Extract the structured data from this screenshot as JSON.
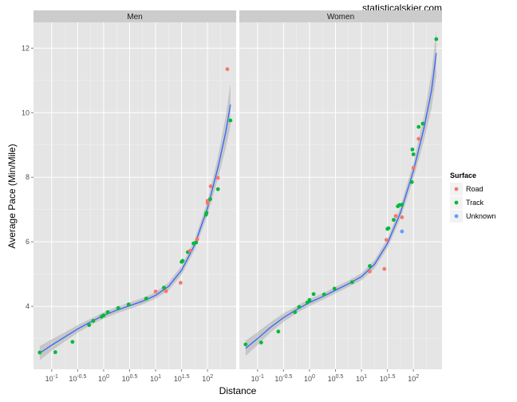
{
  "watermark": "statisticalskier.com",
  "chart_data": {
    "type": "scatter",
    "xlabel": "Distance",
    "ylabel": "Average Pace (Min/Mile)",
    "x_scale": "log10",
    "xlim_log10": [
      -1.35,
      2.55
    ],
    "ylim": [
      2.05,
      12.8
    ],
    "x_ticks_log10": [
      -1,
      -0.5,
      0,
      0.5,
      1,
      1.5,
      2
    ],
    "x_tick_labels": [
      "10^-1",
      "10^-0.5",
      "10^0",
      "10^0.5",
      "10^1",
      "10^1.5",
      "10^2"
    ],
    "y_ticks": [
      4,
      6,
      8,
      10,
      12
    ],
    "grid": true,
    "legend": {
      "title": "Surface",
      "position": "right",
      "entries": [
        {
          "name": "Road",
          "color": "#F8766D"
        },
        {
          "name": "Track",
          "color": "#00BA38"
        },
        {
          "name": "Unknown",
          "color": "#619CFF"
        }
      ]
    },
    "panels": [
      {
        "name": "Men",
        "points": [
          {
            "lx": -1.23,
            "y": 2.57,
            "s": "Track"
          },
          {
            "lx": -0.93,
            "y": 2.58,
            "s": "Track"
          },
          {
            "lx": -0.6,
            "y": 2.9,
            "s": "Track"
          },
          {
            "lx": -0.28,
            "y": 3.42,
            "s": "Track"
          },
          {
            "lx": -0.2,
            "y": 3.55,
            "s": "Track"
          },
          {
            "lx": -0.04,
            "y": 3.68,
            "s": "Track"
          },
          {
            "lx": 0.0,
            "y": 3.72,
            "s": "Track"
          },
          {
            "lx": 0.08,
            "y": 3.82,
            "s": "Track"
          },
          {
            "lx": 0.28,
            "y": 3.95,
            "s": "Track"
          },
          {
            "lx": 0.48,
            "y": 4.06,
            "s": "Track"
          },
          {
            "lx": 0.82,
            "y": 4.24,
            "s": "Track"
          },
          {
            "lx": 1.0,
            "y": 4.46,
            "s": "Road"
          },
          {
            "lx": 1.2,
            "y": 4.47,
            "s": "Road"
          },
          {
            "lx": 1.16,
            "y": 4.58,
            "s": "Track"
          },
          {
            "lx": 1.48,
            "y": 4.73,
            "s": "Road"
          },
          {
            "lx": 1.5,
            "y": 5.38,
            "s": "Track"
          },
          {
            "lx": 1.52,
            "y": 5.41,
            "s": "Track"
          },
          {
            "lx": 1.62,
            "y": 5.68,
            "s": "Track"
          },
          {
            "lx": 1.66,
            "y": 5.72,
            "s": "Road"
          },
          {
            "lx": 1.73,
            "y": 5.95,
            "s": "Track"
          },
          {
            "lx": 1.78,
            "y": 5.98,
            "s": "Track"
          },
          {
            "lx": 1.8,
            "y": 6.08,
            "s": "Road"
          },
          {
            "lx": 1.97,
            "y": 6.84,
            "s": "Track"
          },
          {
            "lx": 1.98,
            "y": 6.9,
            "s": "Track"
          },
          {
            "lx": 2.0,
            "y": 7.2,
            "s": "Road"
          },
          {
            "lx": 2.0,
            "y": 7.27,
            "s": "Road"
          },
          {
            "lx": 2.05,
            "y": 7.32,
            "s": "Track"
          },
          {
            "lx": 2.06,
            "y": 7.72,
            "s": "Road"
          },
          {
            "lx": 2.2,
            "y": 7.63,
            "s": "Track"
          },
          {
            "lx": 2.2,
            "y": 7.98,
            "s": "Road"
          },
          {
            "lx": 2.38,
            "y": 11.35,
            "s": "Road"
          },
          {
            "lx": 2.44,
            "y": 9.76,
            "s": "Track"
          }
        ],
        "fit": [
          {
            "lx": -1.23,
            "y": 2.55
          },
          {
            "lx": -1.0,
            "y": 2.8
          },
          {
            "lx": -0.75,
            "y": 3.05
          },
          {
            "lx": -0.5,
            "y": 3.3
          },
          {
            "lx": -0.25,
            "y": 3.52
          },
          {
            "lx": 0.0,
            "y": 3.72
          },
          {
            "lx": 0.25,
            "y": 3.88
          },
          {
            "lx": 0.5,
            "y": 4.02
          },
          {
            "lx": 0.75,
            "y": 4.16
          },
          {
            "lx": 1.0,
            "y": 4.34
          },
          {
            "lx": 1.25,
            "y": 4.62
          },
          {
            "lx": 1.5,
            "y": 5.12
          },
          {
            "lx": 1.75,
            "y": 5.9
          },
          {
            "lx": 2.0,
            "y": 7.05
          },
          {
            "lx": 2.2,
            "y": 8.3
          },
          {
            "lx": 2.35,
            "y": 9.4
          },
          {
            "lx": 2.44,
            "y": 10.25
          }
        ],
        "band": [
          0.22,
          0.18,
          0.14,
          0.12,
          0.1,
          0.1,
          0.1,
          0.1,
          0.1,
          0.1,
          0.12,
          0.14,
          0.16,
          0.22,
          0.34,
          0.5,
          0.65
        ]
      },
      {
        "name": "Women",
        "points": [
          {
            "lx": -1.23,
            "y": 2.82,
            "s": "Track"
          },
          {
            "lx": -0.93,
            "y": 2.88,
            "s": "Track"
          },
          {
            "lx": -0.6,
            "y": 3.22,
            "s": "Track"
          },
          {
            "lx": -0.28,
            "y": 3.82,
            "s": "Track"
          },
          {
            "lx": -0.2,
            "y": 3.98,
            "s": "Track"
          },
          {
            "lx": -0.04,
            "y": 4.12,
            "s": "Track"
          },
          {
            "lx": 0.0,
            "y": 4.2,
            "s": "Track"
          },
          {
            "lx": 0.08,
            "y": 4.38,
            "s": "Track"
          },
          {
            "lx": 0.28,
            "y": 4.37,
            "s": "Track"
          },
          {
            "lx": 0.48,
            "y": 4.55,
            "s": "Track"
          },
          {
            "lx": 0.82,
            "y": 4.75,
            "s": "Track"
          },
          {
            "lx": 1.16,
            "y": 5.08,
            "s": "Road"
          },
          {
            "lx": 1.16,
            "y": 5.25,
            "s": "Track"
          },
          {
            "lx": 1.44,
            "y": 5.16,
            "s": "Road"
          },
          {
            "lx": 1.48,
            "y": 6.06,
            "s": "Road"
          },
          {
            "lx": 1.5,
            "y": 6.4,
            "s": "Track"
          },
          {
            "lx": 1.52,
            "y": 6.42,
            "s": "Track"
          },
          {
            "lx": 1.62,
            "y": 6.68,
            "s": "Track"
          },
          {
            "lx": 1.66,
            "y": 6.8,
            "s": "Road"
          },
          {
            "lx": 1.7,
            "y": 7.1,
            "s": "Track"
          },
          {
            "lx": 1.73,
            "y": 7.14,
            "s": "Track"
          },
          {
            "lx": 1.78,
            "y": 6.32,
            "s": "Unknown"
          },
          {
            "lx": 1.78,
            "y": 6.76,
            "s": "Road"
          },
          {
            "lx": 1.78,
            "y": 7.15,
            "s": "Track"
          },
          {
            "lx": 1.97,
            "y": 7.85,
            "s": "Track"
          },
          {
            "lx": 1.98,
            "y": 8.86,
            "s": "Track"
          },
          {
            "lx": 2.0,
            "y": 8.71,
            "s": "Track"
          },
          {
            "lx": 2.0,
            "y": 8.29,
            "s": "Road"
          },
          {
            "lx": 2.1,
            "y": 9.19,
            "s": "Road"
          },
          {
            "lx": 2.1,
            "y": 9.56,
            "s": "Track"
          },
          {
            "lx": 2.18,
            "y": 9.66,
            "s": "Track"
          },
          {
            "lx": 2.44,
            "y": 12.28,
            "s": "Track"
          }
        ],
        "fit": [
          {
            "lx": -1.23,
            "y": 2.7
          },
          {
            "lx": -1.0,
            "y": 3.0
          },
          {
            "lx": -0.75,
            "y": 3.35
          },
          {
            "lx": -0.5,
            "y": 3.65
          },
          {
            "lx": -0.25,
            "y": 3.9
          },
          {
            "lx": 0.0,
            "y": 4.12
          },
          {
            "lx": 0.25,
            "y": 4.3
          },
          {
            "lx": 0.5,
            "y": 4.5
          },
          {
            "lx": 0.75,
            "y": 4.7
          },
          {
            "lx": 1.0,
            "y": 4.92
          },
          {
            "lx": 1.25,
            "y": 5.3
          },
          {
            "lx": 1.5,
            "y": 5.95
          },
          {
            "lx": 1.75,
            "y": 6.9
          },
          {
            "lx": 2.0,
            "y": 8.2
          },
          {
            "lx": 2.2,
            "y": 9.5
          },
          {
            "lx": 2.35,
            "y": 10.7
          },
          {
            "lx": 2.44,
            "y": 11.85
          }
        ],
        "band": [
          0.24,
          0.2,
          0.16,
          0.13,
          0.11,
          0.11,
          0.1,
          0.1,
          0.1,
          0.11,
          0.13,
          0.15,
          0.18,
          0.25,
          0.38,
          0.55,
          0.72
        ]
      }
    ]
  }
}
